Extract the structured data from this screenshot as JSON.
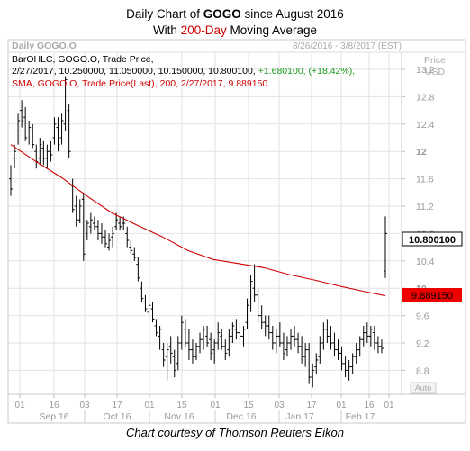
{
  "header": {
    "title_prefix": "Daily Chart of ",
    "ticker": "GOGO",
    "title_suffix": " since August 2016",
    "subtitle_prefix": "With ",
    "sma_label": "200-Day",
    "subtitle_suffix": " Moving Average"
  },
  "panel": {
    "name": "Daily GOGO.O",
    "date_range": "8/26/2016 - 3/8/2017 (EST)",
    "price_label": "Price",
    "currency_label": "USD",
    "ohlc_legend": "BarOHLC, GOGO.O, Trade Price,",
    "ohlc_values": "2/27/2017, 10.250000, 11.050000, 10.150000, 10.800100,",
    "ohlc_change": "+1.680100, (+18.42%),",
    "sma_legend": "SMA, GOGO.O, Trade Price(Last),  200,  2/27/2017, 9.889150",
    "last_price_tag": "10.800100",
    "sma_price_tag": "9.889150",
    "auto_label": "Auto"
  },
  "footer": {
    "credit": "Chart courtesy of Thomson Reuters Eikon"
  },
  "colors": {
    "bars": "#000000",
    "sma": "#d00000",
    "title_accent": "#d00000",
    "change_green": "#1a9a1a",
    "axis_text": "#999999",
    "grid": "#e2e2e2",
    "sma_tag": "#ee0000"
  },
  "chart_data": {
    "type": "ohlc",
    "series": [
      {
        "name": "GOGO.O",
        "legend": "BarOHLC",
        "last": {
          "date": "2/27/2017",
          "open": 10.25,
          "high": 11.05,
          "low": 10.15,
          "close": 10.8001,
          "change": 1.6801,
          "change_pct": 18.42
        }
      },
      {
        "name": "SMA 200",
        "type": "line",
        "points": [
          [
            0,
            12.1
          ],
          [
            10,
            11.85
          ],
          [
            20,
            11.62
          ],
          [
            30,
            11.35
          ],
          [
            40,
            11.1
          ],
          [
            50,
            10.92
          ],
          [
            60,
            10.75
          ],
          [
            70,
            10.55
          ],
          [
            80,
            10.42
          ],
          [
            90,
            10.36
          ],
          [
            100,
            10.3
          ],
          [
            110,
            10.2
          ],
          [
            120,
            10.12
          ],
          [
            130,
            10.03
          ],
          [
            140,
            9.95
          ],
          [
            148,
            9.89
          ]
        ]
      }
    ],
    "bars": [
      [
        11.6,
        11.8,
        11.35,
        11.45
      ],
      [
        11.9,
        12.1,
        11.75,
        12.0
      ],
      [
        12.3,
        12.55,
        12.1,
        12.45
      ],
      [
        12.6,
        12.75,
        12.35,
        12.45
      ],
      [
        12.5,
        12.65,
        12.15,
        12.2
      ],
      [
        12.3,
        12.45,
        12.1,
        12.35
      ],
      [
        12.3,
        12.4,
        12.05,
        12.1
      ],
      [
        12.0,
        12.1,
        11.75,
        11.85
      ],
      [
        11.9,
        12.2,
        11.8,
        12.1
      ],
      [
        12.05,
        12.15,
        11.8,
        11.9
      ],
      [
        11.9,
        12.1,
        11.75,
        12.0
      ],
      [
        12.0,
        12.15,
        11.85,
        11.95
      ],
      [
        12.2,
        12.5,
        12.1,
        12.4
      ],
      [
        12.35,
        12.5,
        12.0,
        12.1
      ],
      [
        12.2,
        12.55,
        12.1,
        12.45
      ],
      [
        12.4,
        13.1,
        12.3,
        13.05
      ],
      [
        12.6,
        12.7,
        11.9,
        12.0
      ],
      [
        11.5,
        11.6,
        11.1,
        11.15
      ],
      [
        11.2,
        11.35,
        10.9,
        11.0
      ],
      [
        11.0,
        11.3,
        10.95,
        11.2
      ],
      [
        11.3,
        11.4,
        10.4,
        10.5
      ],
      [
        10.8,
        11.0,
        10.7,
        10.95
      ],
      [
        10.9,
        11.1,
        10.8,
        11.0
      ],
      [
        10.95,
        11.05,
        10.85,
        10.9
      ],
      [
        10.9,
        11.0,
        10.7,
        10.8
      ],
      [
        10.8,
        10.95,
        10.65,
        10.75
      ],
      [
        10.75,
        10.85,
        10.6,
        10.65
      ],
      [
        10.6,
        10.8,
        10.55,
        10.7
      ],
      [
        10.75,
        10.9,
        10.6,
        10.8
      ],
      [
        10.9,
        11.1,
        10.85,
        11.0
      ],
      [
        10.95,
        11.05,
        10.85,
        10.9
      ],
      [
        10.95,
        11.05,
        10.85,
        10.95
      ],
      [
        10.8,
        10.9,
        10.6,
        10.7
      ],
      [
        10.6,
        10.7,
        10.5,
        10.55
      ],
      [
        10.5,
        10.6,
        10.4,
        10.45
      ],
      [
        10.35,
        10.45,
        10.1,
        10.15
      ],
      [
        10.0,
        10.1,
        9.8,
        9.85
      ],
      [
        9.8,
        9.9,
        9.65,
        9.7
      ],
      [
        9.65,
        9.85,
        9.55,
        9.75
      ],
      [
        9.7,
        9.8,
        9.5,
        9.55
      ],
      [
        9.45,
        9.55,
        9.3,
        9.35
      ],
      [
        9.3,
        9.45,
        9.1,
        9.4
      ],
      [
        9.1,
        9.2,
        8.85,
        8.95
      ],
      [
        9.0,
        9.2,
        8.65,
        9.1
      ],
      [
        9.15,
        9.3,
        8.9,
        9.05
      ],
      [
        9.0,
        9.1,
        8.7,
        8.8
      ],
      [
        8.9,
        9.3,
        8.8,
        9.2
      ],
      [
        9.2,
        9.6,
        9.1,
        9.5
      ],
      [
        9.4,
        9.55,
        9.15,
        9.2
      ],
      [
        9.2,
        9.4,
        8.95,
        9.1
      ],
      [
        9.1,
        9.25,
        8.9,
        9.0
      ],
      [
        9.0,
        9.2,
        8.95,
        9.15
      ],
      [
        9.15,
        9.35,
        9.05,
        9.25
      ],
      [
        9.25,
        9.45,
        9.1,
        9.4
      ],
      [
        9.3,
        9.45,
        9.15,
        9.2
      ],
      [
        9.25,
        9.35,
        8.95,
        9.05
      ],
      [
        9.1,
        9.25,
        8.9,
        9.2
      ],
      [
        9.2,
        9.5,
        9.1,
        9.35
      ],
      [
        9.3,
        9.4,
        9.1,
        9.15
      ],
      [
        9.15,
        9.25,
        8.95,
        9.05
      ],
      [
        9.1,
        9.4,
        9.0,
        9.3
      ],
      [
        9.3,
        9.5,
        9.2,
        9.45
      ],
      [
        9.4,
        9.55,
        9.25,
        9.35
      ],
      [
        9.35,
        9.5,
        9.2,
        9.3
      ],
      [
        9.3,
        9.45,
        9.15,
        9.4
      ],
      [
        9.5,
        9.85,
        9.4,
        9.75
      ],
      [
        9.8,
        10.2,
        9.65,
        10.1
      ],
      [
        10.0,
        10.35,
        9.8,
        9.9
      ],
      [
        9.9,
        10.0,
        9.5,
        9.6
      ],
      [
        9.6,
        9.75,
        9.4,
        9.5
      ],
      [
        9.5,
        9.6,
        9.3,
        9.45
      ],
      [
        9.45,
        9.6,
        9.25,
        9.35
      ],
      [
        9.35,
        9.45,
        9.1,
        9.2
      ],
      [
        9.2,
        9.4,
        9.05,
        9.3
      ],
      [
        9.3,
        9.5,
        9.15,
        9.2
      ],
      [
        9.2,
        9.35,
        8.95,
        9.05
      ],
      [
        9.1,
        9.3,
        9.0,
        9.2
      ],
      [
        9.2,
        9.4,
        9.1,
        9.3
      ],
      [
        9.3,
        9.45,
        9.15,
        9.25
      ],
      [
        9.25,
        9.35,
        9.05,
        9.15
      ],
      [
        9.15,
        9.3,
        8.9,
        9.0
      ],
      [
        9.0,
        9.2,
        8.85,
        9.1
      ],
      [
        9.1,
        9.2,
        8.6,
        8.7
      ],
      [
        8.7,
        8.9,
        8.55,
        8.8
      ],
      [
        8.85,
        9.05,
        8.75,
        8.95
      ],
      [
        9.0,
        9.3,
        8.9,
        9.2
      ],
      [
        9.2,
        9.5,
        9.1,
        9.4
      ],
      [
        9.4,
        9.55,
        9.2,
        9.3
      ],
      [
        9.3,
        9.45,
        9.1,
        9.2
      ],
      [
        9.2,
        9.35,
        9.0,
        9.1
      ],
      [
        9.1,
        9.25,
        8.95,
        9.05
      ],
      [
        9.05,
        9.15,
        8.8,
        8.9
      ],
      [
        8.9,
        9.0,
        8.7,
        8.8
      ],
      [
        8.8,
        8.95,
        8.65,
        8.85
      ],
      [
        8.85,
        9.05,
        8.75,
        9.0
      ],
      [
        9.0,
        9.2,
        8.9,
        9.1
      ],
      [
        9.1,
        9.3,
        9.0,
        9.25
      ],
      [
        9.25,
        9.45,
        9.15,
        9.35
      ],
      [
        9.35,
        9.5,
        9.2,
        9.3
      ],
      [
        9.3,
        9.45,
        9.15,
        9.4
      ],
      [
        9.35,
        9.45,
        9.1,
        9.2
      ],
      [
        9.2,
        9.3,
        9.05,
        9.15
      ],
      [
        9.15,
        9.25,
        9.05,
        9.12
      ],
      [
        10.25,
        11.05,
        10.15,
        10.8001
      ]
    ],
    "x_tick_labels": [
      "01",
      "16",
      "03",
      "17",
      "01",
      "15",
      "01",
      "15",
      "03",
      "17",
      "01",
      "16",
      "01"
    ],
    "month_labels": [
      "Sep 16",
      "Oct 16",
      "Nov 16",
      "Dec 16",
      "Jan 17",
      "Feb 17"
    ],
    "y_ticks": [
      8.8,
      9.2,
      9.6,
      10.0,
      10.4,
      10.8,
      11.2,
      11.6,
      12.0,
      12.4,
      12.8,
      13.2
    ],
    "y_tick_labels": [
      "8.8",
      "9.2",
      "9.6",
      "10",
      "10.4",
      "10.8",
      "11.2",
      "11.6",
      "12",
      "12.4",
      "12.8",
      "13.2"
    ],
    "ylim": [
      8.45,
      13.45
    ],
    "grid": true
  }
}
